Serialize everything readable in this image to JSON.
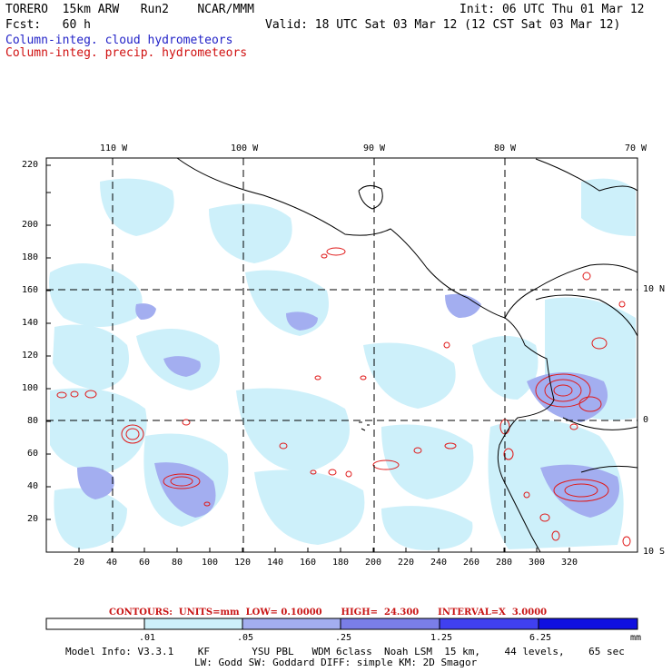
{
  "header": {
    "model": "TORERO  15km ARW   Run2    NCAR/MMM",
    "init": "Init: 06 UTC Thu 01 Mar 12",
    "fcst": "Fcst:   60 h",
    "valid": "Valid: 18 UTC Sat 03 Mar 12 (12 CST Sat 03 Mar 12)",
    "field1": "Column-integ. cloud hydrometeors",
    "field2": "Column-integ. precip. hydrometeors"
  },
  "colors": {
    "field1_text": "#2323c8",
    "field2_text": "#d01010",
    "cloud_light": "#cdf0fa",
    "cloud_mid": "#a3aef0",
    "cloud_dark": "#7a7ee8",
    "precip_contour": "#e01a1a"
  },
  "map": {
    "lon_labels": [
      "110 W",
      "100 W",
      "90 W",
      "80 W",
      "70 W"
    ],
    "lat_labels": [
      "10 N",
      "0",
      "10 S"
    ],
    "x_ticks": [
      "20",
      "40",
      "60",
      "80",
      "100",
      "120",
      "140",
      "160",
      "180",
      "200",
      "220",
      "240",
      "260",
      "280",
      "300",
      "320"
    ],
    "y_ticks": [
      "20",
      "40",
      "60",
      "80",
      "100",
      "120",
      "140",
      "160",
      "180",
      "200",
      "220"
    ]
  },
  "contours": {
    "text": "CONTOURS:  UNITS=mm  LOW= 0.10000      HIGH=  24.300      INTERVAL=X  3.0000"
  },
  "colorbar": {
    "labels": [
      ".01",
      ".05",
      ".25",
      "1.25",
      "6.25"
    ],
    "unit": "mm",
    "colors": [
      "#ffffff",
      "#cdf0fa",
      "#a3aef0",
      "#7a7ee8",
      "#4040f0",
      "#1010e0"
    ]
  },
  "model_info": {
    "line1": "Model Info: V3.3.1    KF       YSU PBL   WDM 6class  Noah LSM  15 km,    44 levels,    65 sec",
    "line2": "LW: Godd SW: Goddard DIFF: simple KM: 2D Smagor"
  }
}
